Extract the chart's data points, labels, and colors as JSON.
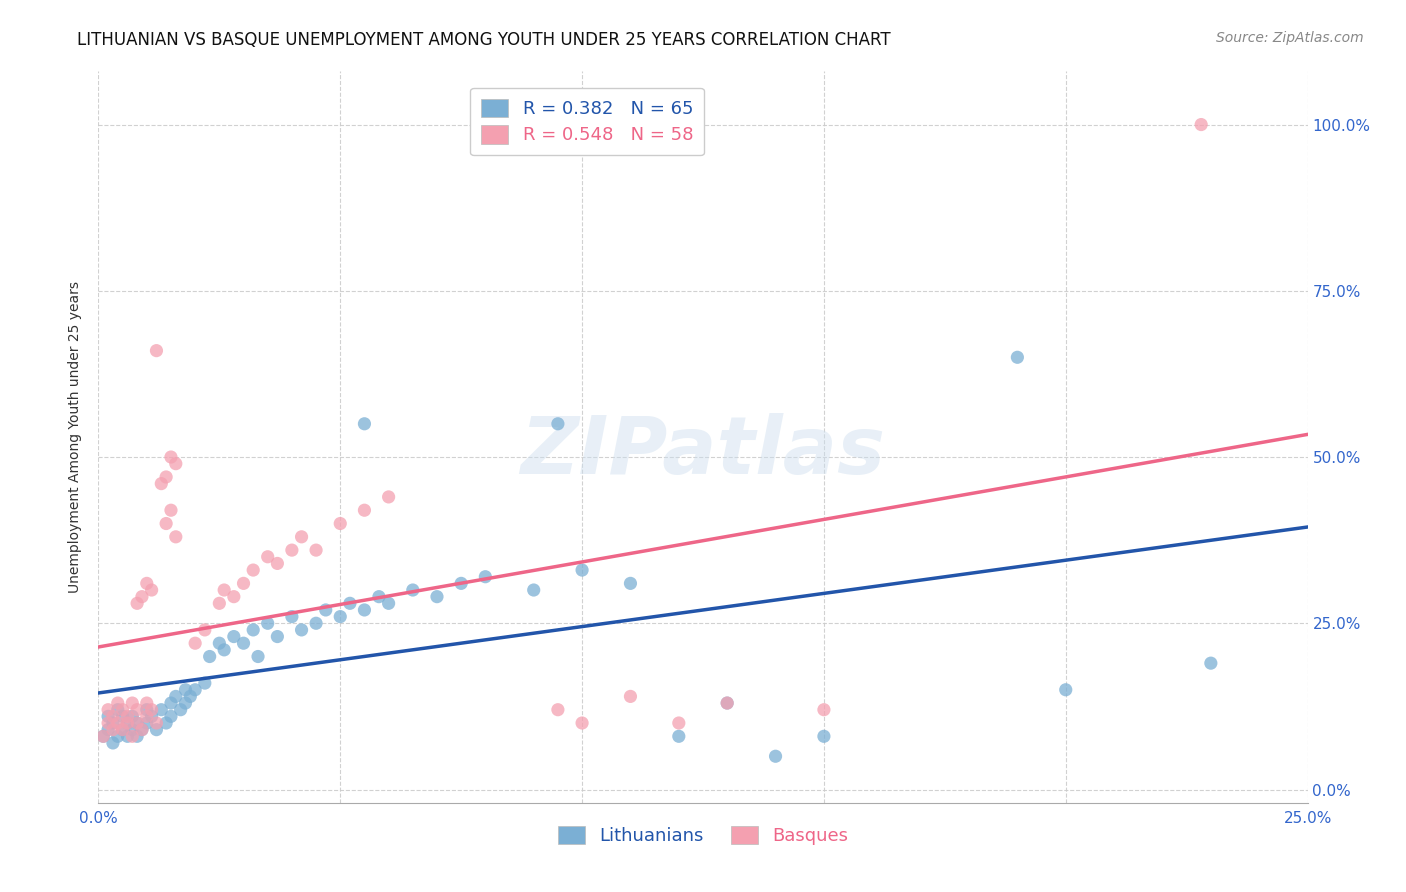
{
  "title": "LITHUANIAN VS BASQUE UNEMPLOYMENT AMONG YOUTH UNDER 25 YEARS CORRELATION CHART",
  "source": "Source: ZipAtlas.com",
  "ylabel": "Unemployment Among Youth under 25 years",
  "xlim": [
    0.0,
    0.25
  ],
  "ylim": [
    -0.02,
    1.08
  ],
  "blue_R": 0.382,
  "blue_N": 65,
  "pink_R": 0.548,
  "pink_N": 58,
  "blue_color": "#7BAFD4",
  "pink_color": "#F4A0B0",
  "blue_line_color": "#2255AA",
  "pink_line_color": "#EE6688",
  "watermark_text": "ZIPatlas",
  "background_color": "#FFFFFF",
  "title_fontsize": 12,
  "source_fontsize": 10,
  "label_fontsize": 10,
  "tick_fontsize": 11,
  "legend_fontsize": 13
}
